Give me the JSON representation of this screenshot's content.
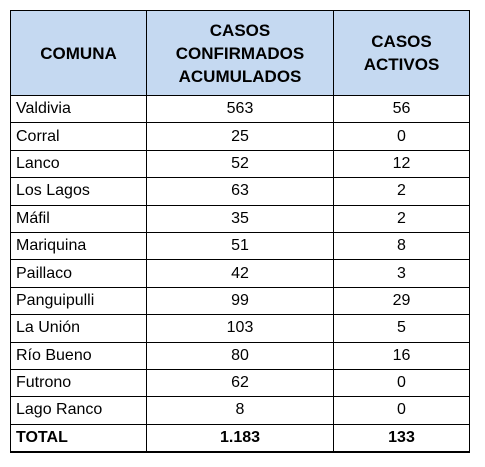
{
  "table": {
    "headers": {
      "comuna": "COMUNA",
      "confirmados_line1": "CASOS",
      "confirmados_line2": "CONFIRMADOS",
      "confirmados_line3": "ACUMULADOS",
      "activos": "CASOS ACTIVOS"
    },
    "rows": [
      {
        "comuna": "Valdivia",
        "confirmados": "563",
        "activos": "56"
      },
      {
        "comuna": "Corral",
        "confirmados": "25",
        "activos": "0"
      },
      {
        "comuna": "Lanco",
        "confirmados": "52",
        "activos": "12"
      },
      {
        "comuna": "Los Lagos",
        "confirmados": "63",
        "activos": "2"
      },
      {
        "comuna": "Máfil",
        "confirmados": "35",
        "activos": "2"
      },
      {
        "comuna": "Mariquina",
        "confirmados": "51",
        "activos": "8"
      },
      {
        "comuna": "Paillaco",
        "confirmados": "42",
        "activos": "3"
      },
      {
        "comuna": "Panguipulli",
        "confirmados": "99",
        "activos": "29"
      },
      {
        "comuna": "La Unión",
        "confirmados": "103",
        "activos": "5"
      },
      {
        "comuna": "Río Bueno",
        "confirmados": "80",
        "activos": "16"
      },
      {
        "comuna": "Futrono",
        "confirmados": "62",
        "activos": "0"
      },
      {
        "comuna": "Lago Ranco",
        "confirmados": "8",
        "activos": "0"
      }
    ],
    "total": {
      "label": "TOTAL",
      "confirmados": "1.183",
      "activos": "133"
    }
  },
  "colors": {
    "header_background": "#c5d9f1",
    "border": "#000000"
  }
}
